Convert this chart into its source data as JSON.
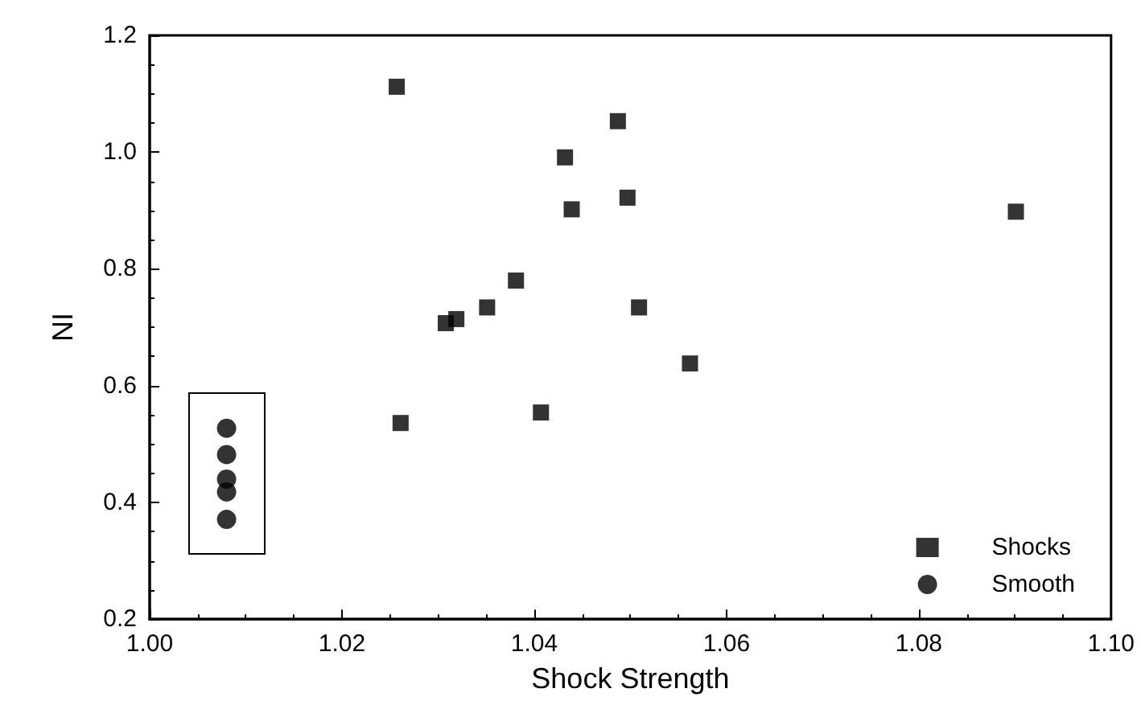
{
  "chart_data": {
    "type": "scatter",
    "xlabel": "Shock Strength",
    "ylabel": "NI",
    "xlim": [
      1.0,
      1.1
    ],
    "ylim": [
      0.2,
      1.2
    ],
    "xticks": [
      {
        "value": 1.0,
        "label": "1.00"
      },
      {
        "value": 1.02,
        "label": "1.02"
      },
      {
        "value": 1.04,
        "label": "1.04"
      },
      {
        "value": 1.06,
        "label": "1.06"
      },
      {
        "value": 1.08,
        "label": "1.08"
      },
      {
        "value": 1.1,
        "label": "1.10"
      }
    ],
    "yticks": [
      {
        "value": 0.2,
        "label": "0.2"
      },
      {
        "value": 0.4,
        "label": "0.4"
      },
      {
        "value": 0.6,
        "label": "0.6"
      },
      {
        "value": 0.8,
        "label": "0.8"
      },
      {
        "value": 1.0,
        "label": "1.0"
      },
      {
        "value": 1.2,
        "label": "1.2"
      }
    ],
    "grid": false,
    "legend": "bottom right",
    "series": [
      {
        "name": "Shocks",
        "color": "#000000",
        "marker": "square",
        "x": [
          1.0257,
          1.0432,
          1.0439,
          1.0381,
          1.0351,
          1.0308,
          1.0319,
          1.0261,
          1.0407,
          1.0487,
          1.0497,
          1.0509,
          1.0562,
          1.0901
        ],
        "values": [
          1.112,
          0.991,
          0.902,
          0.78,
          0.734,
          0.707,
          0.714,
          0.536,
          0.554,
          1.053,
          0.922,
          0.734,
          0.638,
          0.898
        ]
      },
      {
        "name": "Smooth",
        "color": "#000000",
        "marker": "circle",
        "x": [
          1.008,
          1.008,
          1.008,
          1.008,
          1.008
        ],
        "values": [
          0.527,
          0.482,
          0.44,
          0.418,
          0.371
        ]
      }
    ]
  }
}
